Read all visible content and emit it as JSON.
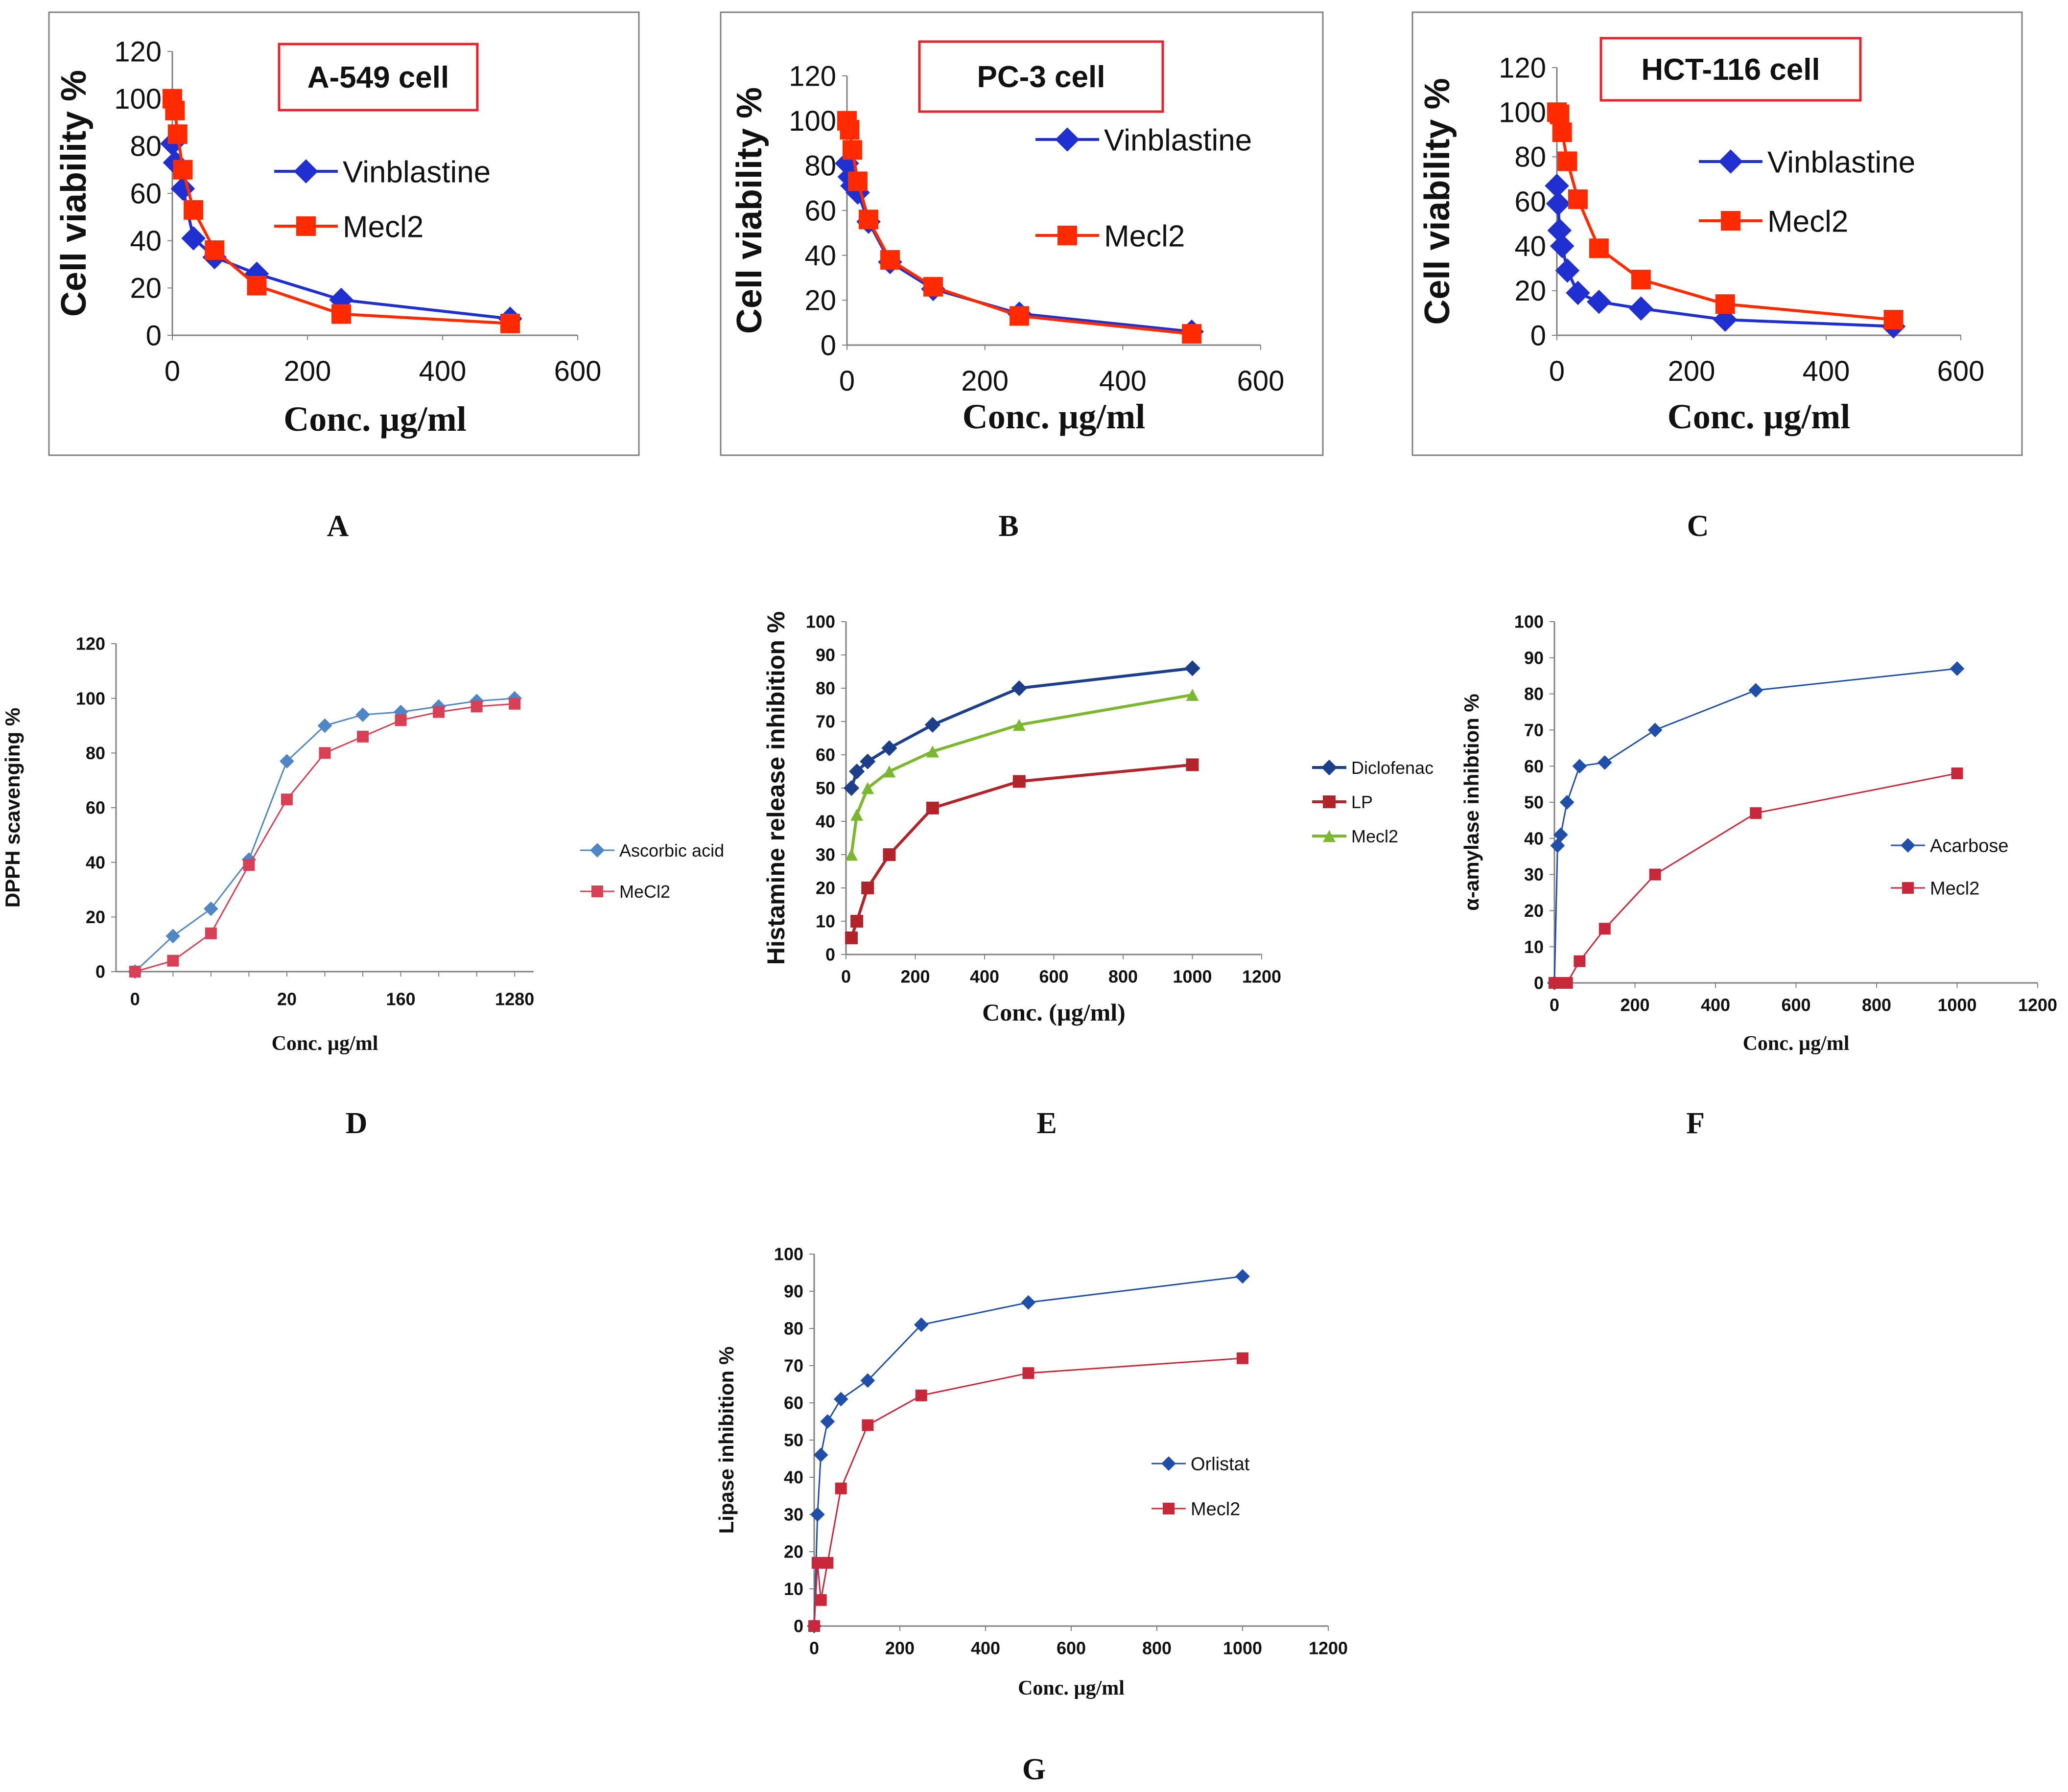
{
  "chart_data": [
    {
      "id": "A",
      "type": "line",
      "panel_label": "A",
      "title": "A-549 cell",
      "title_boxed": true,
      "xlabel": "Conc. µg/ml",
      "ylabel": "Cell viability %",
      "xlim": [
        0,
        600
      ],
      "ylim": [
        0,
        120
      ],
      "xticks": [
        0,
        200,
        400,
        600
      ],
      "yticks": [
        0,
        20,
        40,
        60,
        80,
        100,
        120
      ],
      "grid": false,
      "boxed": true,
      "legend_position": "right",
      "style": "excel",
      "series": [
        {
          "name": "Vinblastine",
          "color": "#1f2fd0",
          "marker": "diamond",
          "x": [
            0,
            3.9,
            7.8,
            15.6,
            31.25,
            62.5,
            125,
            250,
            500
          ],
          "y": [
            81,
            73,
            72,
            62,
            41,
            33,
            26,
            15,
            7
          ]
        },
        {
          "name": "Mecl2",
          "color": "#ff2a00",
          "marker": "square",
          "x": [
            0,
            3.9,
            7.8,
            15.6,
            31.25,
            62.5,
            125,
            250,
            500
          ],
          "y": [
            100,
            95,
            85,
            70,
            53,
            36,
            21,
            9,
            5
          ]
        }
      ]
    },
    {
      "id": "B",
      "type": "line",
      "panel_label": "B",
      "title": "PC-3 cell",
      "title_boxed": true,
      "xlabel": "Conc. µg/ml",
      "ylabel": "Cell viability %",
      "xlim": [
        0,
        600
      ],
      "ylim": [
        0,
        120
      ],
      "xticks": [
        0,
        200,
        400,
        600
      ],
      "yticks": [
        0,
        20,
        40,
        60,
        80,
        100,
        120
      ],
      "grid": false,
      "boxed": true,
      "legend_position": "right",
      "style": "excel",
      "series": [
        {
          "name": "Vinblastine",
          "color": "#1f2fd0",
          "marker": "diamond",
          "x": [
            0,
            3.9,
            7.8,
            15.6,
            31.25,
            62.5,
            125,
            250,
            500
          ],
          "y": [
            81,
            75,
            71,
            68,
            55,
            37,
            25,
            14,
            6
          ]
        },
        {
          "name": "Mecl2",
          "color": "#ff2a00",
          "marker": "square",
          "x": [
            0,
            3.9,
            7.8,
            15.6,
            31.25,
            62.5,
            125,
            250,
            500
          ],
          "y": [
            100,
            96,
            87,
            73,
            56,
            38,
            26,
            13,
            5
          ]
        }
      ]
    },
    {
      "id": "C",
      "type": "line",
      "panel_label": "C",
      "title": "HCT-116 cell",
      "title_boxed": true,
      "xlabel": "Conc. µg/ml",
      "ylabel": "Cell viability %",
      "xlim": [
        0,
        600
      ],
      "ylim": [
        0,
        120
      ],
      "xticks": [
        0,
        200,
        400,
        600
      ],
      "yticks": [
        0,
        20,
        40,
        60,
        80,
        100,
        120
      ],
      "grid": false,
      "boxed": true,
      "legend_position": "right",
      "style": "excel",
      "series": [
        {
          "name": "Vinblastine",
          "color": "#1f2fd0",
          "marker": "diamond",
          "x": [
            0,
            1.95,
            3.9,
            7.8,
            15.6,
            31.25,
            62.5,
            125,
            250,
            500
          ],
          "y": [
            67,
            59,
            47,
            40,
            29,
            19,
            15,
            12,
            7,
            4
          ]
        },
        {
          "name": "Mecl2",
          "color": "#ff2a00",
          "marker": "square",
          "x": [
            0,
            3.9,
            7.8,
            15.6,
            31.25,
            62.5,
            125,
            250,
            500
          ],
          "y": [
            100,
            99,
            91,
            78,
            61,
            39,
            25,
            14,
            7
          ]
        }
      ]
    },
    {
      "id": "D",
      "type": "line",
      "panel_label": "D",
      "title": "",
      "xlabel": "Conc. µg/ml",
      "ylabel": "DPPH scavenging %",
      "x_categorical": true,
      "categories": [
        "0",
        "",
        "",
        "",
        "20",
        "",
        "",
        "160",
        "",
        "",
        "1280"
      ],
      "ylim": [
        0,
        120
      ],
      "yticks": [
        0,
        20,
        40,
        60,
        80,
        100,
        120
      ],
      "grid": false,
      "boxed": false,
      "legend_position": "right",
      "style": "small",
      "series": [
        {
          "name": "Ascorbic acid",
          "color": "#4f86c6",
          "marker": "diamond",
          "y": [
            0,
            13,
            23,
            41,
            77,
            90,
            94,
            95,
            97,
            99,
            100
          ]
        },
        {
          "name": "MeCl2",
          "color": "#d94055",
          "marker": "square",
          "y": [
            0,
            4,
            14,
            39,
            63,
            80,
            86,
            92,
            95,
            97,
            98
          ]
        }
      ]
    },
    {
      "id": "E",
      "type": "line",
      "panel_label": "E",
      "title": "",
      "xlabel": "Conc. (µg/ml)",
      "ylabel": "Histamine release inhibition %",
      "xlim": [
        0,
        1200
      ],
      "ylim": [
        0,
        100
      ],
      "xticks": [
        0,
        200,
        400,
        600,
        800,
        1000,
        1200
      ],
      "yticks": [
        0,
        10,
        20,
        30,
        40,
        50,
        60,
        70,
        80,
        90,
        100
      ],
      "grid": false,
      "boxed": false,
      "legend_position": "right",
      "style": "small",
      "series": [
        {
          "name": "Diclofenac",
          "color": "#1c3f8c",
          "marker": "diamond",
          "x": [
            15.6,
            31.25,
            62.5,
            125,
            250,
            500,
            1000
          ],
          "y": [
            50,
            55,
            58,
            62,
            69,
            80,
            86
          ]
        },
        {
          "name": "LP",
          "color": "#b3242a",
          "marker": "square",
          "x": [
            15.6,
            31.25,
            62.5,
            125,
            250,
            500,
            1000
          ],
          "y": [
            5,
            10,
            20,
            30,
            44,
            52,
            57
          ]
        },
        {
          "name": "Mecl2",
          "color": "#7cb82f",
          "marker": "triangle",
          "x": [
            15.6,
            31.25,
            62.5,
            125,
            250,
            500,
            1000
          ],
          "y": [
            30,
            42,
            50,
            55,
            61,
            69,
            78
          ]
        }
      ]
    },
    {
      "id": "F",
      "type": "line",
      "panel_label": "F",
      "title": "",
      "xlabel": "Conc. µg/ml",
      "ylabel": "α-amylase inhibtion %",
      "xlim": [
        0,
        1200
      ],
      "ylim": [
        0,
        100
      ],
      "xticks": [
        0,
        200,
        400,
        600,
        800,
        1000,
        1200
      ],
      "yticks": [
        0,
        10,
        20,
        30,
        40,
        50,
        60,
        70,
        80,
        90,
        100
      ],
      "grid": false,
      "boxed": false,
      "legend_position": "right",
      "style": "small",
      "series": [
        {
          "name": "Acarbose",
          "color": "#1f4fa8",
          "marker": "diamond",
          "x": [
            0,
            7.8,
            15.6,
            31.25,
            62.5,
            125,
            250,
            500,
            1000
          ],
          "y": [
            0,
            38,
            41,
            50,
            60,
            61,
            70,
            81,
            87
          ]
        },
        {
          "name": "Mecl2",
          "color": "#c8283a",
          "marker": "square",
          "x": [
            0,
            7.8,
            15.6,
            31.25,
            62.5,
            125,
            250,
            500,
            1000
          ],
          "y": [
            0,
            0,
            0,
            0,
            6,
            15,
            30,
            47,
            58
          ]
        }
      ]
    },
    {
      "id": "G",
      "type": "line",
      "panel_label": "G",
      "title": "",
      "xlabel": "Conc. µg/ml",
      "ylabel": "Lipase inhibition %",
      "xlim": [
        0,
        1200
      ],
      "ylim": [
        0,
        100
      ],
      "xticks": [
        0,
        200,
        400,
        600,
        800,
        1000,
        1200
      ],
      "yticks": [
        0,
        10,
        20,
        30,
        40,
        50,
        60,
        70,
        80,
        90,
        100
      ],
      "grid": false,
      "boxed": false,
      "legend_position": "right",
      "style": "small",
      "series": [
        {
          "name": "Orlistat",
          "color": "#1f4fa8",
          "marker": "diamond",
          "x": [
            0,
            7.8,
            15.6,
            31.25,
            62.5,
            125,
            250,
            500,
            1000
          ],
          "y": [
            0,
            30,
            46,
            55,
            61,
            66,
            81,
            87,
            94
          ]
        },
        {
          "name": "Mecl2",
          "color": "#c8283a",
          "marker": "square",
          "x": [
            0,
            7.8,
            15.6,
            31.25,
            62.5,
            125,
            250,
            500,
            1000
          ],
          "y": [
            0,
            17,
            7,
            17,
            37,
            54,
            62,
            68,
            72
          ]
        }
      ]
    }
  ]
}
